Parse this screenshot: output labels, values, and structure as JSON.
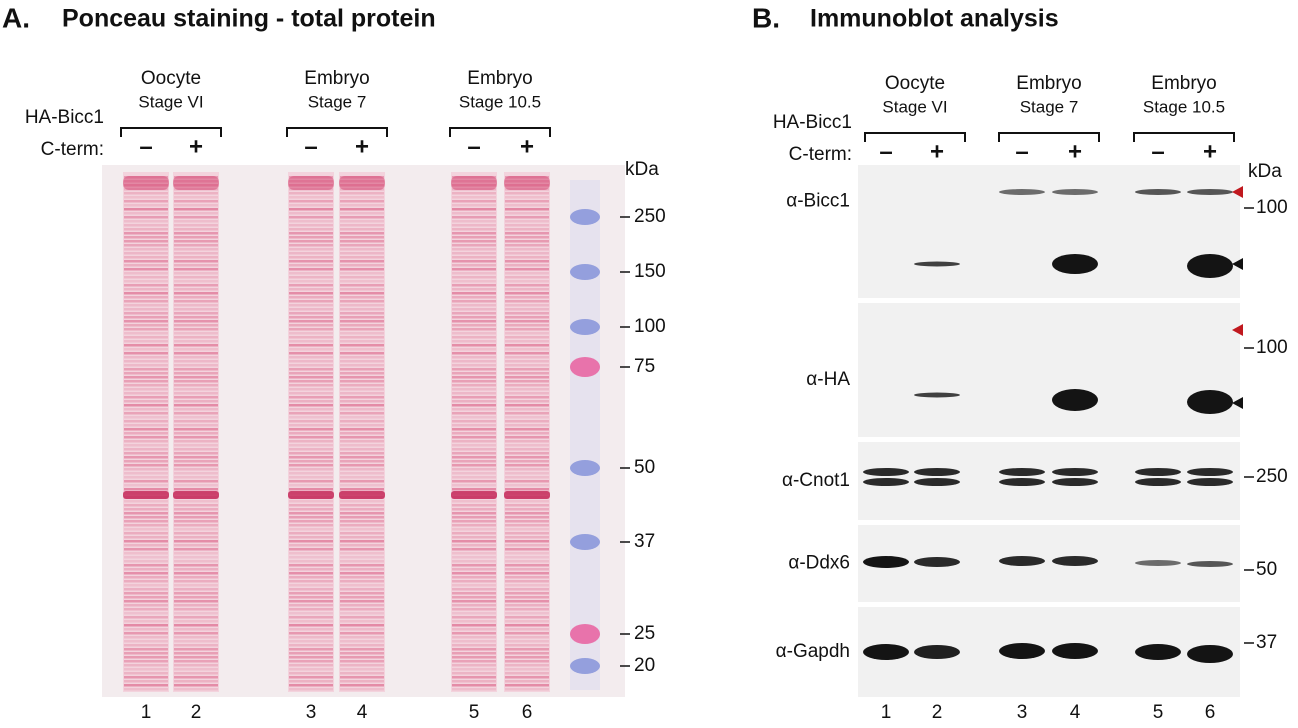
{
  "panel_a": {
    "label": "A.",
    "title": "Ponceau staining - total protein",
    "construct": "HA-Bicc1",
    "construct_part": "C-term:",
    "groups": [
      {
        "name": "Oocyte",
        "stage": "Stage VI"
      },
      {
        "name": "Embryo",
        "stage": "Stage 7"
      },
      {
        "name": "Embryo",
        "stage": "Stage 10.5"
      }
    ],
    "signs": [
      "–",
      "+",
      "–",
      "+",
      "–",
      "+"
    ],
    "unit": "kDa",
    "markers": [
      "250",
      "150",
      "100",
      "75",
      "50",
      "37",
      "25",
      "20"
    ],
    "lanes": [
      "1",
      "2",
      "3",
      "4",
      "5",
      "6"
    ]
  },
  "panel_b": {
    "label": "B.",
    "title": "Immunoblot analysis",
    "construct": "HA-Bicc1",
    "construct_part": "C-term:",
    "groups": [
      {
        "name": "Oocyte",
        "stage": "Stage VI"
      },
      {
        "name": "Embryo",
        "stage": "Stage 7"
      },
      {
        "name": "Embryo",
        "stage": "Stage 10.5"
      }
    ],
    "signs": [
      "–",
      "+",
      "–",
      "+",
      "–",
      "+"
    ],
    "unit": "kDa",
    "blots": [
      {
        "antibody": "α-Bicc1",
        "markers": [
          "100"
        ]
      },
      {
        "antibody": "α-HA",
        "markers": [
          "100"
        ]
      },
      {
        "antibody": "α-Cnot1",
        "markers": [
          "250"
        ]
      },
      {
        "antibody": "α-Ddx6",
        "markers": [
          "50"
        ]
      },
      {
        "antibody": "α-Gapdh",
        "markers": [
          "37"
        ]
      }
    ],
    "lanes": [
      "1",
      "2",
      "3",
      "4",
      "5",
      "6"
    ]
  }
}
